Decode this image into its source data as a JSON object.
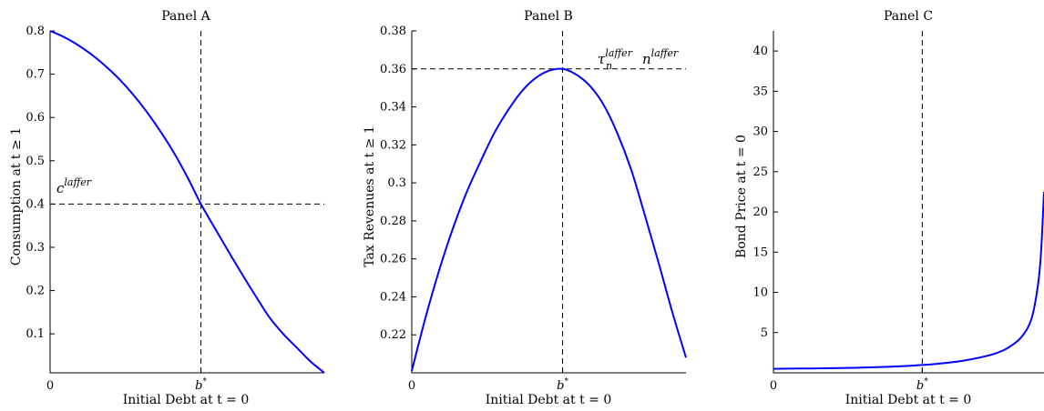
{
  "colors": {
    "series": "#0000ff",
    "axis": "#000000",
    "reference": "#000000"
  },
  "chart_data": [
    {
      "type": "line",
      "title": "Panel A",
      "xlabel": "Initial Debt at t = 0",
      "ylabel": "Consumption at t ≥ 1",
      "xlim": [
        0,
        1.0
      ],
      "ylim": [
        0.01,
        0.8
      ],
      "x_ticks": [
        {
          "value": 0,
          "label": "0"
        },
        {
          "value": 0.55,
          "label": "b*"
        }
      ],
      "y_ticks": [
        0.1,
        0.2,
        0.3,
        0.4,
        0.5,
        0.6,
        0.7,
        0.8
      ],
      "y_tick_labels": [
        "0.1",
        "0.2",
        "0.3",
        "0.4",
        "0.5",
        "0.6",
        "0.7",
        "0.8"
      ],
      "reference_lines": {
        "x": 0.55,
        "y": 0.4
      },
      "annotation": {
        "text": "c",
        "sup": "laffer"
      },
      "grid": false,
      "series": [
        {
          "x": [
            0,
            0.05,
            0.1,
            0.15,
            0.2,
            0.25,
            0.3,
            0.35,
            0.4,
            0.45,
            0.5,
            0.55,
            0.6,
            0.65,
            0.7,
            0.75,
            0.8,
            0.85,
            0.9,
            0.95,
            1.0
          ],
          "y": [
            0.8,
            0.786,
            0.768,
            0.746,
            0.72,
            0.69,
            0.655,
            0.615,
            0.57,
            0.52,
            0.463,
            0.4,
            0.345,
            0.291,
            0.238,
            0.187,
            0.138,
            0.1,
            0.068,
            0.036,
            0.01
          ]
        }
      ]
    },
    {
      "type": "line",
      "title": "Panel B",
      "xlabel": "Initial Debt at t = 0",
      "ylabel": "Tax Revenues at t ≥ 1",
      "xlim": [
        0,
        1.0
      ],
      "ylim": [
        0.2,
        0.38
      ],
      "x_ticks": [
        {
          "value": 0,
          "label": "0"
        },
        {
          "value": 0.55,
          "label": "b*"
        }
      ],
      "y_ticks": [
        0.22,
        0.24,
        0.26,
        0.28,
        0.3,
        0.32,
        0.34,
        0.36,
        0.38
      ],
      "y_tick_labels": [
        "0.22",
        "0.24",
        "0.26",
        "0.28",
        "0.3",
        "0.32",
        "0.34",
        "0.36",
        "0.38"
      ],
      "reference_lines": {
        "x": 0.55,
        "y": 0.36
      },
      "annotation": {
        "text1": "τ",
        "sub1": "n",
        "sup1": "laffer",
        "text2": "n",
        "sup2": "laffer"
      },
      "grid": false,
      "series": [
        {
          "x": [
            0,
            0.05,
            0.1,
            0.15,
            0.2,
            0.25,
            0.3,
            0.35,
            0.4,
            0.45,
            0.5,
            0.55,
            0.6,
            0.65,
            0.7,
            0.75,
            0.8,
            0.85,
            0.9,
            0.95,
            1.0
          ],
          "y": [
            0.201,
            0.229,
            0.254,
            0.276,
            0.295,
            0.311,
            0.326,
            0.338,
            0.348,
            0.355,
            0.359,
            0.36,
            0.357,
            0.351,
            0.341,
            0.326,
            0.307,
            0.283,
            0.258,
            0.232,
            0.208
          ]
        }
      ]
    },
    {
      "type": "line",
      "title": "Panel C",
      "xlabel": "Initial Debt at t = 0",
      "ylabel": "Bond Price at t = 0",
      "xlim": [
        0,
        1.0
      ],
      "ylim": [
        0,
        42.5
      ],
      "x_ticks": [
        {
          "value": 0,
          "label": "0"
        },
        {
          "value": 0.55,
          "label": "b*"
        }
      ],
      "y_ticks": [
        5,
        10,
        15,
        20,
        25,
        30,
        35,
        40
      ],
      "y_tick_labels": [
        "5",
        "10",
        "15",
        "20",
        "25",
        "30",
        "35",
        "40"
      ],
      "reference_lines": {
        "x": 0.55
      },
      "grid": false,
      "series": [
        {
          "x": [
            0,
            0.1,
            0.2,
            0.3,
            0.4,
            0.5,
            0.55,
            0.6,
            0.7,
            0.8,
            0.85,
            0.88,
            0.91,
            0.94,
            0.96,
            0.98,
            0.99,
            1.0
          ],
          "y": [
            0.5,
            0.53,
            0.56,
            0.62,
            0.72,
            0.86,
            0.98,
            1.1,
            1.5,
            2.2,
            2.8,
            3.4,
            4.2,
            5.6,
            7.5,
            11.5,
            15.5,
            22.5
          ]
        }
      ]
    }
  ]
}
